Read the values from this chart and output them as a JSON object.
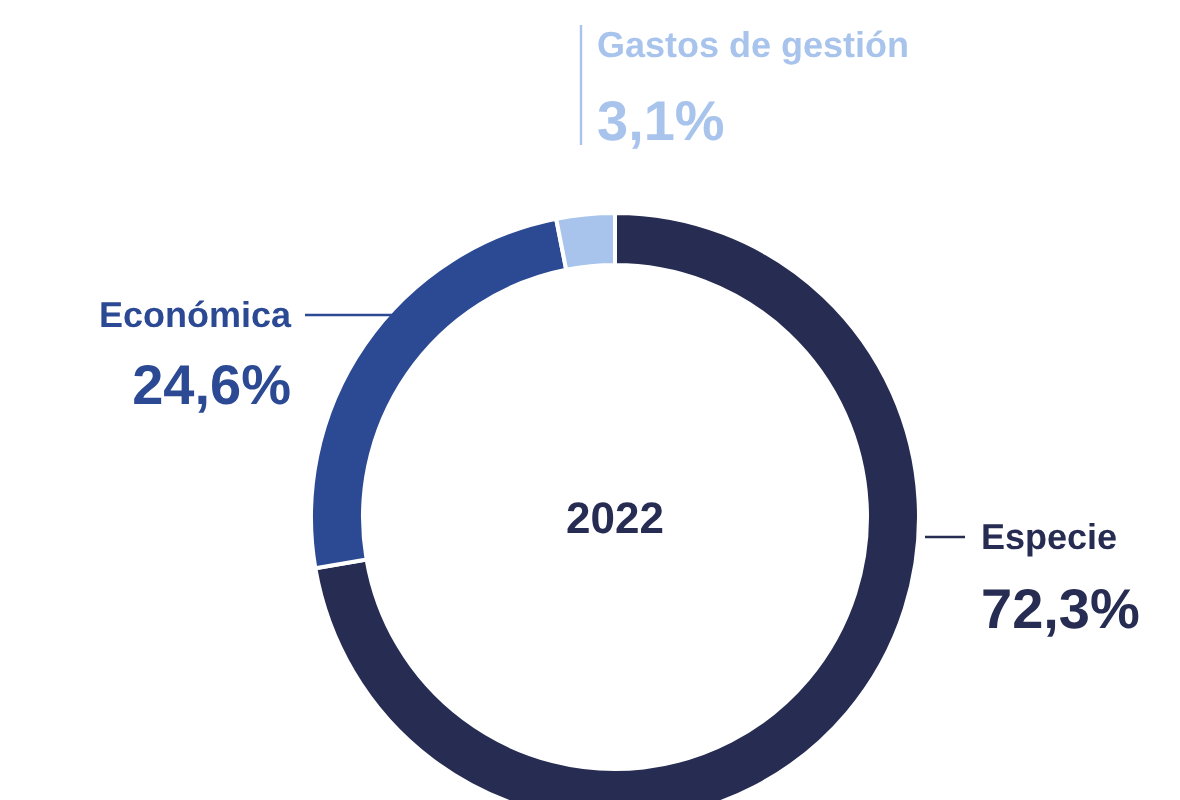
{
  "chart_data": {
    "type": "donut",
    "title": "2022",
    "categories": [
      "Especie",
      "Económica",
      "Gastos de gestión"
    ],
    "values": [
      72.3,
      24.6,
      3.1
    ],
    "colors": [
      "#272d52",
      "#2c4a94",
      "#a8c4ec"
    ],
    "value_labels": [
      "72,3%",
      "24,6%",
      "3,1%"
    ]
  }
}
